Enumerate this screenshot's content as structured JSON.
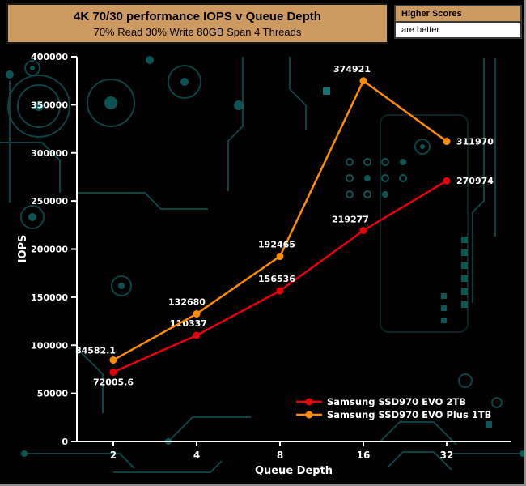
{
  "header": {
    "title": "4K 70/30 performance IOPS v Queue Depth",
    "subtitle": "70% Read 30% Write 80GB Span 4 Threads"
  },
  "note_box": {
    "line1": "Higher Scores",
    "line2": "are better"
  },
  "chart_data": {
    "type": "line",
    "title": "4K 70/30 performance IOPS v Queue Depth",
    "subtitle": "70% Read 30% Write 80GB Span 4 Threads",
    "xlabel": "Queue Depth",
    "ylabel": "IOPS",
    "x": [
      2,
      4,
      8,
      16,
      32
    ],
    "xticks": [
      "2",
      "4",
      "8",
      "16",
      "32"
    ],
    "x_scale": "log2-categorical",
    "ylim": [
      0,
      400000
    ],
    "yticks": [
      "0",
      "50000",
      "100000",
      "150000",
      "200000",
      "250000",
      "300000",
      "350000",
      "400000"
    ],
    "grid": false,
    "legend_position": "bottom-right-inside",
    "series": [
      {
        "name": "Samsung SSD970 EVO 2TB",
        "color": "#e8000b",
        "values": [
          72005.6,
          110337,
          156536,
          219277,
          270974
        ],
        "labels": [
          "72005.6",
          "110337",
          "156536",
          "219277",
          "270974"
        ]
      },
      {
        "name": "Samsung SSD970 EVO Plus 1TB",
        "color": "#ff8c00",
        "values": [
          84582.1,
          132680,
          192465,
          374921,
          311970
        ],
        "labels": [
          "84582.1",
          "132680",
          "192465",
          "374921",
          "311970"
        ]
      }
    ]
  },
  "colors": {
    "page_background": "#000000",
    "circuit_trace": "#0d4a4a",
    "axis": "#ffffff",
    "label_text": "#ffffff",
    "series_red": "#e8000b",
    "series_orange": "#ff8c00",
    "banner": "#cd9a62"
  }
}
